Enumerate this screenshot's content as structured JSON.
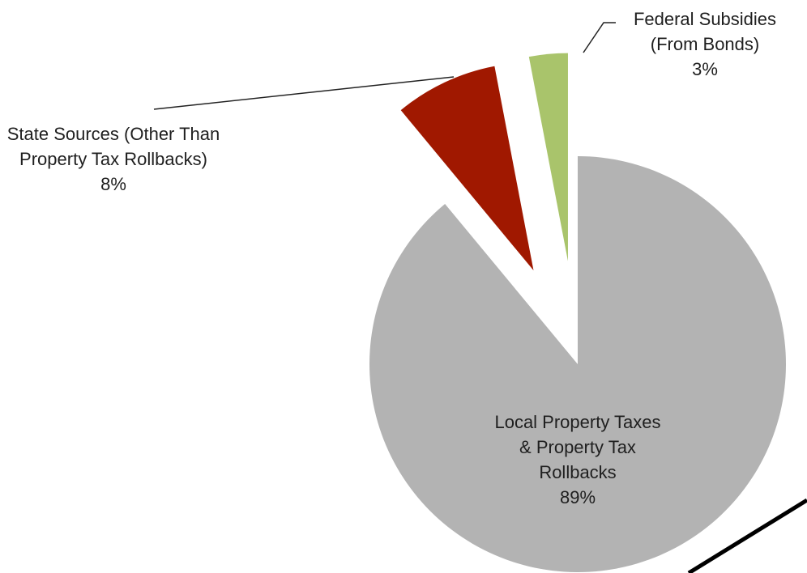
{
  "chart_data": {
    "type": "pie",
    "categories": [
      "Local Property Taxes & Property Tax Rollbacks",
      "State Sources (Other Than Property Tax Rollbacks)",
      "Federal Subsidies (From Bonds)"
    ],
    "values": [
      89,
      8,
      3
    ],
    "value_labels": [
      "89%",
      "8%",
      "3%"
    ],
    "colors": [
      "#b3b3b3",
      "#a01800",
      "#a9c46b"
    ]
  }
}
